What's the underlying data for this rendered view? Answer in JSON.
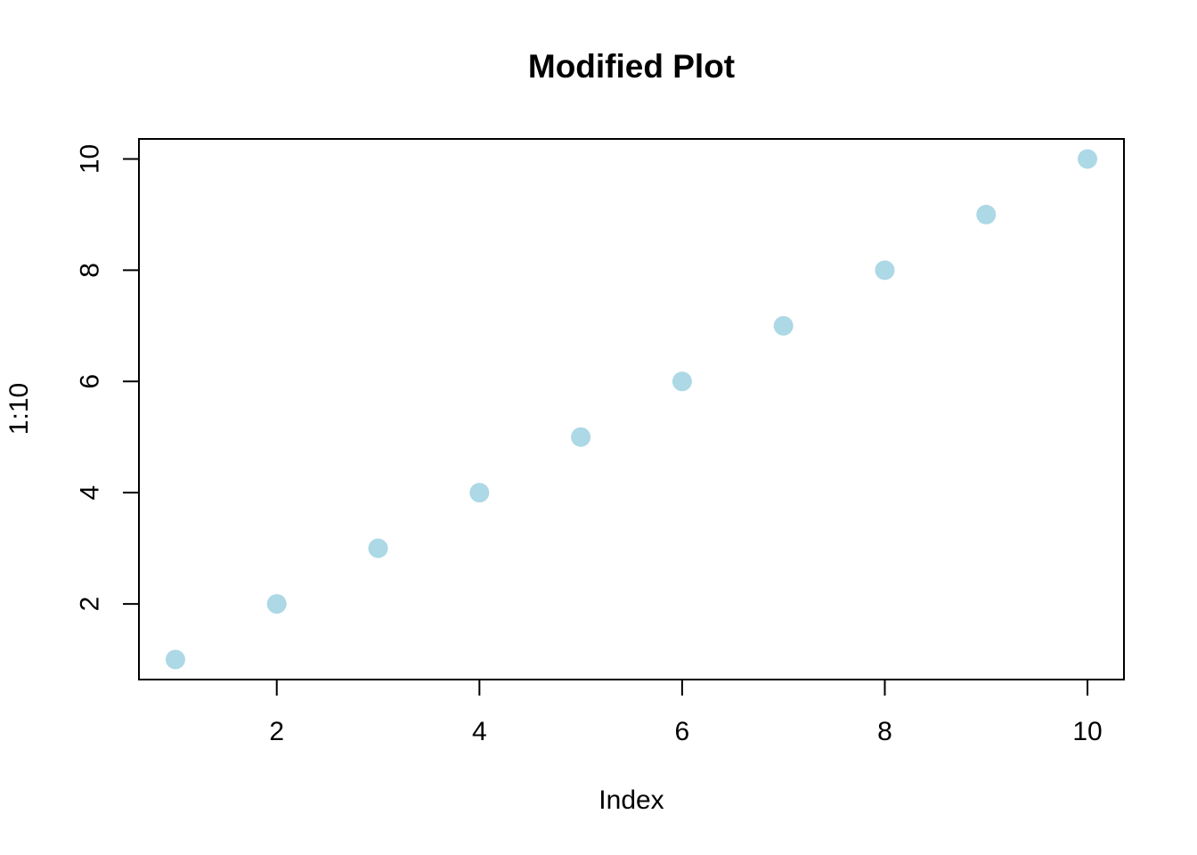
{
  "chart_data": {
    "type": "scatter",
    "title": "Modified Plot",
    "xlabel": "Index",
    "ylabel": "1:10",
    "x": [
      1,
      2,
      3,
      4,
      5,
      6,
      7,
      8,
      9,
      10
    ],
    "y": [
      1,
      2,
      3,
      4,
      5,
      6,
      7,
      8,
      9,
      10
    ],
    "x_ticks": [
      2,
      4,
      6,
      8,
      10
    ],
    "y_ticks": [
      2,
      4,
      6,
      8,
      10
    ],
    "xlim": [
      0.64,
      10.36
    ],
    "ylim": [
      0.64,
      10.36
    ],
    "grid": false,
    "legend": "none",
    "point_color": "#ADD8E6",
    "axis_color": "#000000",
    "background_color": "#FFFFFF"
  }
}
